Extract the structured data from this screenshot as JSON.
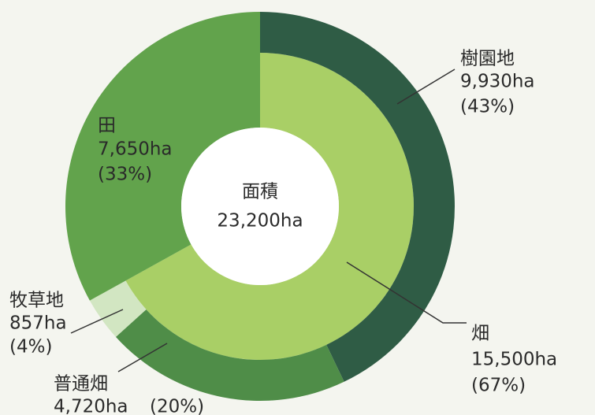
{
  "chart_data": {
    "type": "nested-donut",
    "center_label": "面積",
    "total": 23200,
    "total_label": "23,200ha",
    "categories": [
      {
        "name": "畑",
        "value": 15500,
        "value_label": "15,500ha",
        "percent": 67,
        "percent_label": "(67%)",
        "color": "#a9cf66",
        "children": [
          {
            "name": "樹園地",
            "value": 9930,
            "value_label": "9,930ha",
            "percent": 43,
            "percent_label": "(43%)",
            "color": "#2f5c45"
          },
          {
            "name": "普通畑",
            "value": 4720,
            "value_label": "4,720ha",
            "percent": 20,
            "percent_label": "(20%)",
            "color": "#4f8d48"
          },
          {
            "name": "牧草地",
            "value": 857,
            "value_label": "857ha",
            "percent": 4,
            "percent_label": "(4%)",
            "color": "#d2e6c2"
          }
        ]
      },
      {
        "name": "田",
        "value": 7650,
        "value_label": "7,650ha",
        "percent": 33,
        "percent_label": "(33%)",
        "color": "#62a34c"
      }
    ]
  }
}
